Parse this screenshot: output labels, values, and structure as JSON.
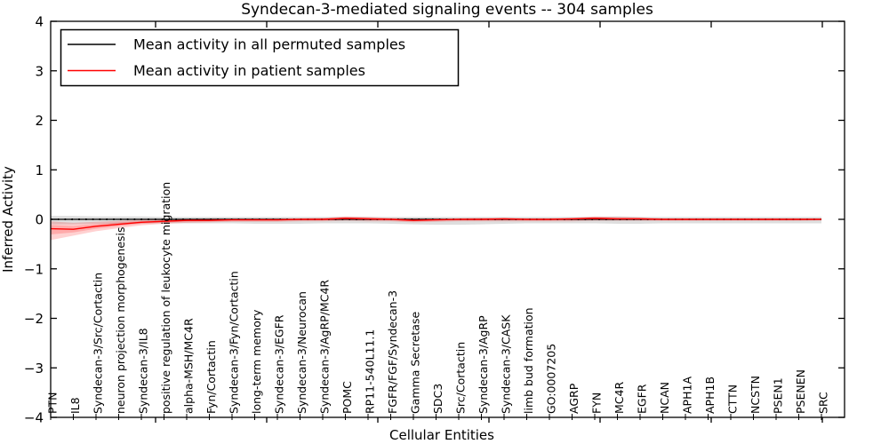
{
  "chart_data": {
    "type": "line",
    "title": "Syndecan-3-mediated signaling events -- 304 samples",
    "xlabel": "Cellular Entities",
    "ylabel": "Inferred Activity",
    "ylim": [
      -4,
      4
    ],
    "yticks": [
      "4",
      "3",
      "2",
      "1",
      "0",
      "−1",
      "−2",
      "−3",
      "−4"
    ],
    "grid": false,
    "legend_position": "upper left",
    "categories": [
      "PTN",
      "IL8",
      "Syndecan-3/Src/Cortactin",
      "neuron projection morphogenesis",
      "Syndecan-3/IL8",
      "positive regulation of leukocyte migration",
      "alpha-MSH/MC4R",
      "Fyn/Cortactin",
      "Syndecan-3/Fyn/Cortactin",
      "long-term memory",
      "Syndecan-3/EGFR",
      "Syndecan-3/Neurocan",
      "Syndecan-3/AgRP/MC4R",
      "POMC",
      "RP11-540L11.1",
      "FGFR/FGF/Syndecan-3",
      "Gamma Secretase",
      "SDC3",
      "Src/Cortactin",
      "Syndecan-3/AgRP",
      "Syndecan-3/CASK",
      "limb bud formation",
      "GO:0007205",
      "AGRP",
      "FYN",
      "MC4R",
      "EGFR",
      "NCAN",
      "APH1A",
      "APH1B",
      "CTTN",
      "NCSTN",
      "PSEN1",
      "PSENEN",
      "SRC"
    ],
    "series": [
      {
        "name": "Mean activity in all permuted samples",
        "color": "#000000",
        "band_color": "rgba(0,0,0,0.13)",
        "values": [
          0,
          0,
          0,
          0,
          0,
          0,
          0,
          0,
          0,
          0,
          0,
          0,
          0,
          0,
          0,
          0,
          0,
          0,
          0,
          0,
          0,
          0,
          0,
          0,
          0,
          0,
          0,
          0,
          0,
          0,
          0,
          0,
          0,
          0,
          0
        ],
        "band_upper": [
          0.07,
          0.07,
          0.06,
          0.06,
          0.06,
          0.05,
          0.05,
          0.05,
          0.05,
          0.05,
          0.05,
          0.05,
          0.05,
          0.05,
          0.05,
          0.05,
          0.05,
          0.05,
          0.05,
          0.05,
          0.05,
          0.05,
          0.05,
          0.05,
          0.05,
          0.06,
          0.05,
          0.05,
          0.05,
          0.05,
          0.05,
          0.05,
          0.05,
          0.05,
          0.05
        ],
        "band_lower": [
          -0.1,
          -0.1,
          -0.09,
          -0.09,
          -0.08,
          -0.08,
          -0.08,
          -0.08,
          -0.08,
          -0.09,
          -0.09,
          -0.09,
          -0.08,
          -0.08,
          -0.08,
          -0.09,
          -0.1,
          -0.11,
          -0.11,
          -0.1,
          -0.09,
          -0.08,
          -0.08,
          -0.08,
          -0.08,
          -0.09,
          -0.09,
          -0.08,
          -0.08,
          -0.08,
          -0.08,
          -0.08,
          -0.08,
          -0.08,
          -0.08
        ]
      },
      {
        "name": "Mean activity in patient samples",
        "color": "#ff0000",
        "band_color": "rgba(255,0,0,0.18)",
        "values": [
          -0.19,
          -0.2,
          -0.14,
          -0.1,
          -0.06,
          -0.04,
          -0.02,
          -0.02,
          -0.01,
          -0.01,
          -0.01,
          0.0,
          0.0,
          0.02,
          0.01,
          0.0,
          -0.02,
          -0.01,
          0.0,
          0.0,
          0.01,
          0.0,
          0.0,
          0.01,
          0.02,
          0.01,
          0.01,
          0.0,
          0.0,
          0.0,
          0.0,
          0.0,
          0.0,
          0.0,
          0.0
        ],
        "band_upper": [
          -0.04,
          -0.07,
          -0.05,
          -0.03,
          -0.01,
          0.0,
          0.01,
          0.02,
          0.02,
          0.02,
          0.02,
          0.02,
          0.03,
          0.06,
          0.05,
          0.03,
          0.02,
          0.02,
          0.02,
          0.03,
          0.03,
          0.02,
          0.02,
          0.03,
          0.06,
          0.05,
          0.04,
          0.02,
          0.02,
          0.02,
          0.02,
          0.02,
          0.02,
          0.02,
          0.02
        ],
        "band_lower": [
          -0.42,
          -0.33,
          -0.24,
          -0.18,
          -0.12,
          -0.09,
          -0.07,
          -0.06,
          -0.05,
          -0.05,
          -0.05,
          -0.04,
          -0.04,
          -0.03,
          -0.04,
          -0.04,
          -0.06,
          -0.05,
          -0.04,
          -0.04,
          -0.04,
          -0.04,
          -0.04,
          -0.04,
          -0.03,
          -0.03,
          -0.03,
          -0.03,
          -0.03,
          -0.03,
          -0.03,
          -0.03,
          -0.03,
          -0.03,
          -0.02
        ]
      }
    ]
  }
}
